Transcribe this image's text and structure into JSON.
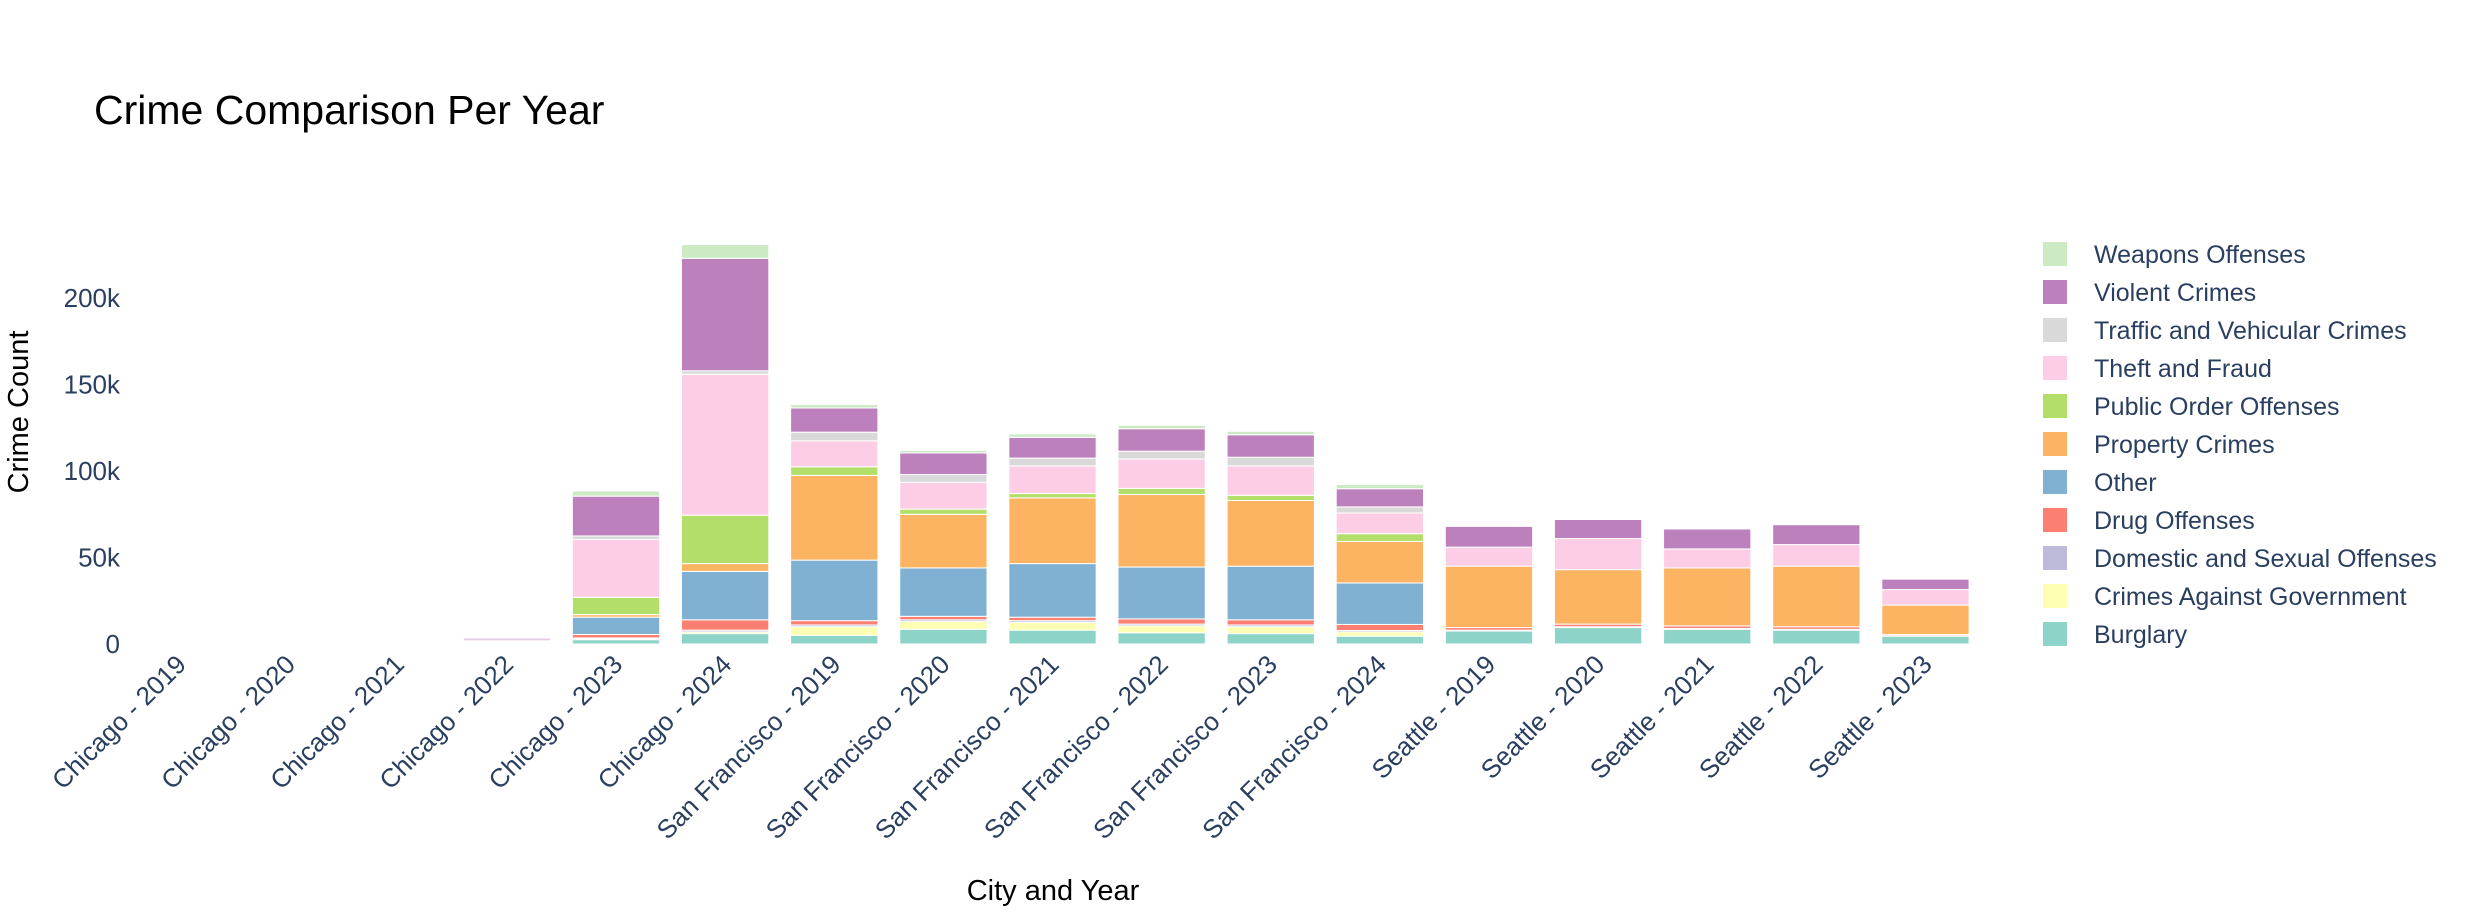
{
  "chart_data": {
    "type": "bar",
    "stacked": true,
    "title": "Crime Comparison Per Year",
    "xlabel": "City and Year",
    "ylabel": "Crime Count",
    "ylim": [
      0,
      240000
    ],
    "yticks": [
      0,
      50000,
      100000,
      150000,
      200000
    ],
    "ytick_labels": [
      "0",
      "50k",
      "100k",
      "150k",
      "200k"
    ],
    "grid": false,
    "legend_position": "right",
    "categories": [
      "Chicago - 2019",
      "Chicago - 2020",
      "Chicago - 2021",
      "Chicago - 2022",
      "Chicago - 2023",
      "Chicago - 2024",
      "San Francisco - 2019",
      "San Francisco - 2020",
      "San Francisco - 2021",
      "San Francisco - 2022",
      "San Francisco - 2023",
      "San Francisco - 2024",
      "Seattle - 2019",
      "Seattle - 2020",
      "Seattle - 2021",
      "Seattle - 2022",
      "Seattle - 2023"
    ],
    "series": [
      {
        "name": "Burglary",
        "color": "#8dd3c7",
        "values": [
          150,
          150,
          200,
          400,
          2500,
          6000,
          5000,
          8500,
          8000,
          6500,
          6000,
          4500,
          7500,
          9500,
          8500,
          8000,
          4500
        ]
      },
      {
        "name": "Crimes Against Government",
        "color": "#ffffb3",
        "values": [
          10,
          10,
          20,
          50,
          500,
          1000,
          5000,
          4500,
          4500,
          4000,
          4000,
          2500,
          0,
          0,
          0,
          0,
          0
        ]
      },
      {
        "name": "Domestic and Sexual Offenses",
        "color": "#bebada",
        "values": [
          20,
          20,
          30,
          80,
          500,
          1000,
          1000,
          1000,
          1000,
          1000,
          1000,
          800,
          500,
          500,
          500,
          500,
          300
        ]
      },
      {
        "name": "Drug Offenses",
        "color": "#fb8072",
        "values": [
          30,
          30,
          50,
          120,
          2000,
          6000,
          2500,
          2000,
          2000,
          3000,
          3000,
          3500,
          1500,
          1500,
          1500,
          1500,
          700
        ]
      },
      {
        "name": "Other",
        "color": "#80b1d3",
        "values": [
          100,
          100,
          150,
          500,
          10000,
          28000,
          35000,
          28000,
          31000,
          30000,
          31000,
          24000,
          0,
          0,
          0,
          0,
          0
        ]
      },
      {
        "name": "Property Crimes",
        "color": "#fdb462",
        "values": [
          20,
          20,
          30,
          70,
          1500,
          4500,
          49000,
          31000,
          38000,
          42000,
          38000,
          24000,
          35500,
          31500,
          33500,
          35000,
          17000
        ]
      },
      {
        "name": "Public Order Offenses",
        "color": "#b3de69",
        "values": [
          50,
          50,
          80,
          300,
          10000,
          28000,
          5000,
          3000,
          2500,
          3500,
          3000,
          4500,
          0,
          0,
          0,
          0,
          0
        ]
      },
      {
        "name": "Theft and Fraud",
        "color": "#fccde5",
        "values": [
          200,
          200,
          300,
          800,
          33500,
          81500,
          15000,
          15500,
          16000,
          17000,
          17000,
          12000,
          11000,
          18000,
          11000,
          12500,
          9000
        ]
      },
      {
        "name": "Traffic and Vehicular Crimes",
        "color": "#d9d9d9",
        "values": [
          10,
          10,
          20,
          50,
          2000,
          2000,
          5000,
          4500,
          4500,
          4500,
          5000,
          3500,
          0,
          0,
          0,
          0,
          0
        ]
      },
      {
        "name": "Violent Crimes",
        "color": "#bc80bd",
        "values": [
          150,
          150,
          250,
          1000,
          23000,
          65000,
          14000,
          12500,
          12000,
          13000,
          13000,
          10500,
          12000,
          11000,
          11500,
          11500,
          6000
        ]
      },
      {
        "name": "Weapons Offenses",
        "color": "#ccebc5",
        "values": [
          10,
          10,
          20,
          100,
          3000,
          8000,
          2000,
          1500,
          2000,
          2000,
          2000,
          2500,
          0,
          0,
          0,
          0,
          0
        ]
      }
    ]
  }
}
